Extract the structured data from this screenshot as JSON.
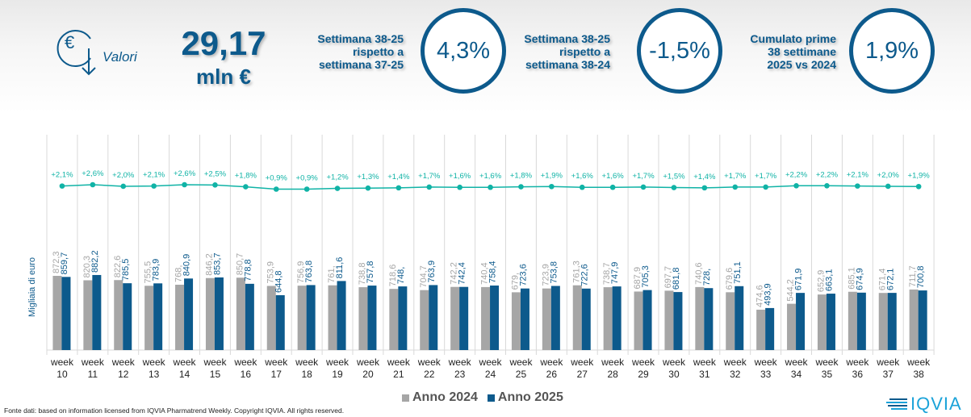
{
  "header": {
    "icon": "euro-down-arrow-icon",
    "icon_label": "Valori",
    "total_value": "29,17",
    "total_unit": "mln €"
  },
  "kpis": [
    {
      "lines": [
        "Settimana 38-25",
        "rispetto a",
        "settimana 37-25"
      ],
      "value": "4,3%"
    },
    {
      "lines": [
        "Settimana 38-25",
        "rispetto a",
        "settimana 38-24"
      ],
      "value": "-1,5%"
    },
    {
      "lines": [
        "Cumulato prime",
        "38 settimane",
        "2025 vs 2024"
      ],
      "value": "1,9%"
    }
  ],
  "colors": {
    "anno_2024": "#a6a6a6",
    "anno_2025": "#0d5a8c",
    "growth_line": "#10b3a6",
    "text_blue": "#0d5a8c"
  },
  "chart_data": {
    "type": "bar",
    "title": "",
    "xlabel": "",
    "ylabel": "Migliaia di euro",
    "ylim": [
      0,
      1300
    ],
    "grid": "vertical separators",
    "legend": "bottom-center",
    "categories": [
      [
        "week",
        "10"
      ],
      [
        "week",
        "11"
      ],
      [
        "week",
        "12"
      ],
      [
        "week",
        "13"
      ],
      [
        "week",
        "14"
      ],
      [
        "week",
        "15"
      ],
      [
        "week",
        "16"
      ],
      [
        "week",
        "17"
      ],
      [
        "week",
        "18"
      ],
      [
        "week",
        "19"
      ],
      [
        "week",
        "20"
      ],
      [
        "week",
        "21"
      ],
      [
        "week",
        "22"
      ],
      [
        "week",
        "23"
      ],
      [
        "week",
        "24"
      ],
      [
        "week",
        "25"
      ],
      [
        "week",
        "26"
      ],
      [
        "week",
        "27"
      ],
      [
        "week",
        "28"
      ],
      [
        "week",
        "29"
      ],
      [
        "week",
        "30"
      ],
      [
        "week",
        "31"
      ],
      [
        "week",
        "32"
      ],
      [
        "week",
        "33"
      ],
      [
        "week",
        "34"
      ],
      [
        "week",
        "35"
      ],
      [
        "week",
        "36"
      ],
      [
        "week",
        "37"
      ],
      [
        "week",
        "38"
      ]
    ],
    "series": [
      {
        "name": "Anno 2024",
        "values": [
          872.3,
          820.3,
          822.6,
          755.5,
          768,
          846.2,
          850.7,
          753.9,
          756.9,
          761,
          738.8,
          718.6,
          704.7,
          742.2,
          740.4,
          679,
          723.9,
          761.3,
          738.7,
          687.9,
          697.7,
          740.6,
          679.6,
          474.6,
          544.2,
          652.9,
          685.1,
          671.4,
          711.7
        ],
        "labels": [
          "872,3",
          "820,3",
          "822,6",
          "755,5",
          "768,",
          "846,2",
          "850,7",
          "753,9",
          "756,9",
          "761,",
          "738,8",
          "718,6",
          "704,7",
          "742,2",
          "740,4",
          "679,",
          "723,9",
          "761,3",
          "738,7",
          "687,9",
          "697,7",
          "740,6",
          "679,6",
          "474,6",
          "544,2",
          "652,9",
          "685,1",
          "671,4",
          "711,7"
        ]
      },
      {
        "name": "Anno 2025",
        "values": [
          859.7,
          882.2,
          785.5,
          783.9,
          840.9,
          853.7,
          778.8,
          644.8,
          763.8,
          811.6,
          757.8,
          748,
          763.9,
          742.4,
          758.4,
          723.6,
          753.8,
          722.6,
          747.9,
          705.3,
          681.8,
          728,
          751.1,
          493.9,
          671.9,
          663.1,
          674.9,
          672.1,
          700.8
        ],
        "labels": [
          "859,7",
          "882,2",
          "785,5",
          "783,9",
          "840,9",
          "853,7",
          "778,8",
          "644,8",
          "763,8",
          "811,6",
          "757,8",
          "748,",
          "763,9",
          "742,4",
          "758,4",
          "723,6",
          "753,8",
          "722,6",
          "747,9",
          "705,3",
          "681,8",
          "728,",
          "751,1",
          "493,9",
          "671,9",
          "663,1",
          "674,9",
          "672,1",
          "700,8"
        ]
      }
    ],
    "growth_line": {
      "name": "Cumulative growth %",
      "values": [
        2.1,
        2.6,
        2.0,
        2.1,
        2.6,
        2.5,
        1.8,
        0.9,
        0.9,
        1.2,
        1.3,
        1.4,
        1.7,
        1.6,
        1.6,
        1.8,
        1.9,
        1.6,
        1.6,
        1.7,
        1.5,
        1.4,
        1.7,
        1.7,
        2.2,
        2.2,
        2.1,
        2.0,
        1.9
      ],
      "labels": [
        "+2,1%",
        "+2,6%",
        "+2,0%",
        "+2,1%",
        "+2,6%",
        "+2,5%",
        "+1,8%",
        "+0,9%",
        "+0,9%",
        "+1,2%",
        "+1,3%",
        "+1,4%",
        "+1,7%",
        "+1,6%",
        "+1,6%",
        "+1,8%",
        "+1,9%",
        "+1,6%",
        "+1,6%",
        "+1,7%",
        "+1,5%",
        "+1,4%",
        "+1,7%",
        "+1,7%",
        "+2,2%",
        "+2,2%",
        "+2,1%",
        "+2,0%",
        "+1,9%"
      ]
    }
  },
  "legend": [
    {
      "label": "Anno 2024",
      "color": "#a6a6a6"
    },
    {
      "label": "Anno 2025",
      "color": "#0d5a8c"
    }
  ],
  "footer": {
    "source_note": "Fonte dati: based on information licensed from IQVIA Pharmatrend Weekly. Copyright IQVIA. All rights reserved.",
    "logo_text": "IQVIA"
  }
}
